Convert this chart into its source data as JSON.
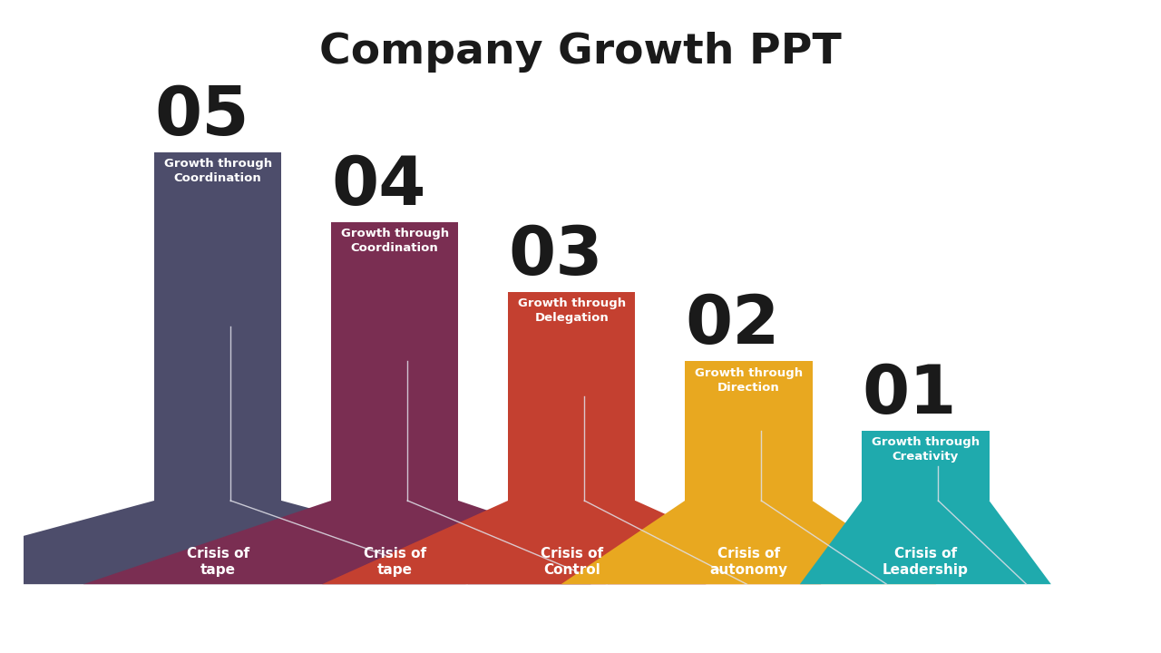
{
  "title": "Company Growth PPT",
  "title_fontsize": 34,
  "title_fontweight": "bold",
  "background_color": "#ffffff",
  "bars": [
    {
      "number": "05",
      "growth_label": "Growth through\nCoordination",
      "crisis_label": "Crisis of\ntape",
      "color": "#4d4d6b",
      "height": 5,
      "x_center": 1.0
    },
    {
      "number": "04",
      "growth_label": "Growth through\nCoordination",
      "crisis_label": "Crisis of\ntape",
      "color": "#7a2e52",
      "height": 4,
      "x_center": 2.0
    },
    {
      "number": "03",
      "growth_label": "Growth through\nDelegation",
      "crisis_label": "Crisis of\nControl",
      "color": "#c44030",
      "height": 3,
      "x_center": 3.0
    },
    {
      "number": "02",
      "growth_label": "Growth through\nDirection",
      "crisis_label": "Crisis of\nautonomy",
      "color": "#e8a820",
      "height": 2,
      "x_center": 4.0
    },
    {
      "number": "01",
      "growth_label": "Growth through\nCreativity",
      "crisis_label": "Crisis of\nLeadership",
      "color": "#1faaad",
      "height": 1,
      "x_center": 5.0
    }
  ],
  "bar_width": 0.72,
  "base_y": -1.2,
  "number_fontsize": 54,
  "growth_fontsize": 9.5,
  "crisis_fontsize": 11,
  "white_line_color": "#e0e0e8",
  "xlim": [
    -0.1,
    6.2
  ],
  "ylim": [
    -2.0,
    7.0
  ]
}
